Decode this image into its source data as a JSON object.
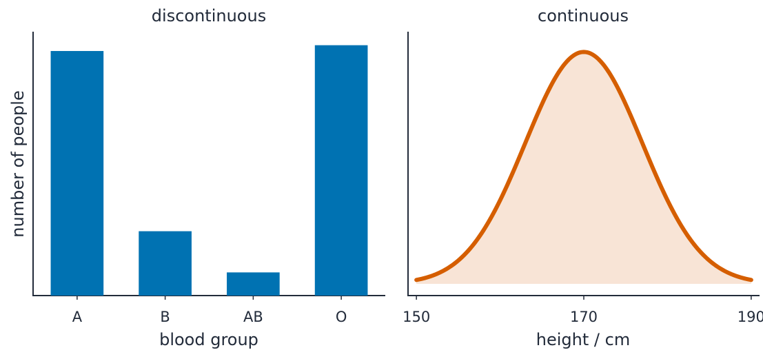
{
  "chart_data": [
    {
      "type": "bar",
      "title": "discontinuous",
      "xlabel": "blood group",
      "ylabel": "number of people",
      "categories": [
        "A",
        "B",
        "AB",
        "O"
      ],
      "values": [
        38,
        10,
        3.6,
        38.9
      ],
      "ylim": [
        0,
        41
      ],
      "color": "#0072b2",
      "yticks_shown": false,
      "grid": false
    },
    {
      "type": "area",
      "title": "continuous",
      "xlabel": "height / cm",
      "xlim": [
        149,
        191
      ],
      "xticks": [
        "150",
        "170",
        "190"
      ],
      "distribution": "normal",
      "mean": 170,
      "sd": 7,
      "x_range": [
        150,
        190
      ],
      "line_color": "#d55e00",
      "fill_color": "#f8e4d6",
      "yticks_shown": false,
      "grid": false
    }
  ]
}
